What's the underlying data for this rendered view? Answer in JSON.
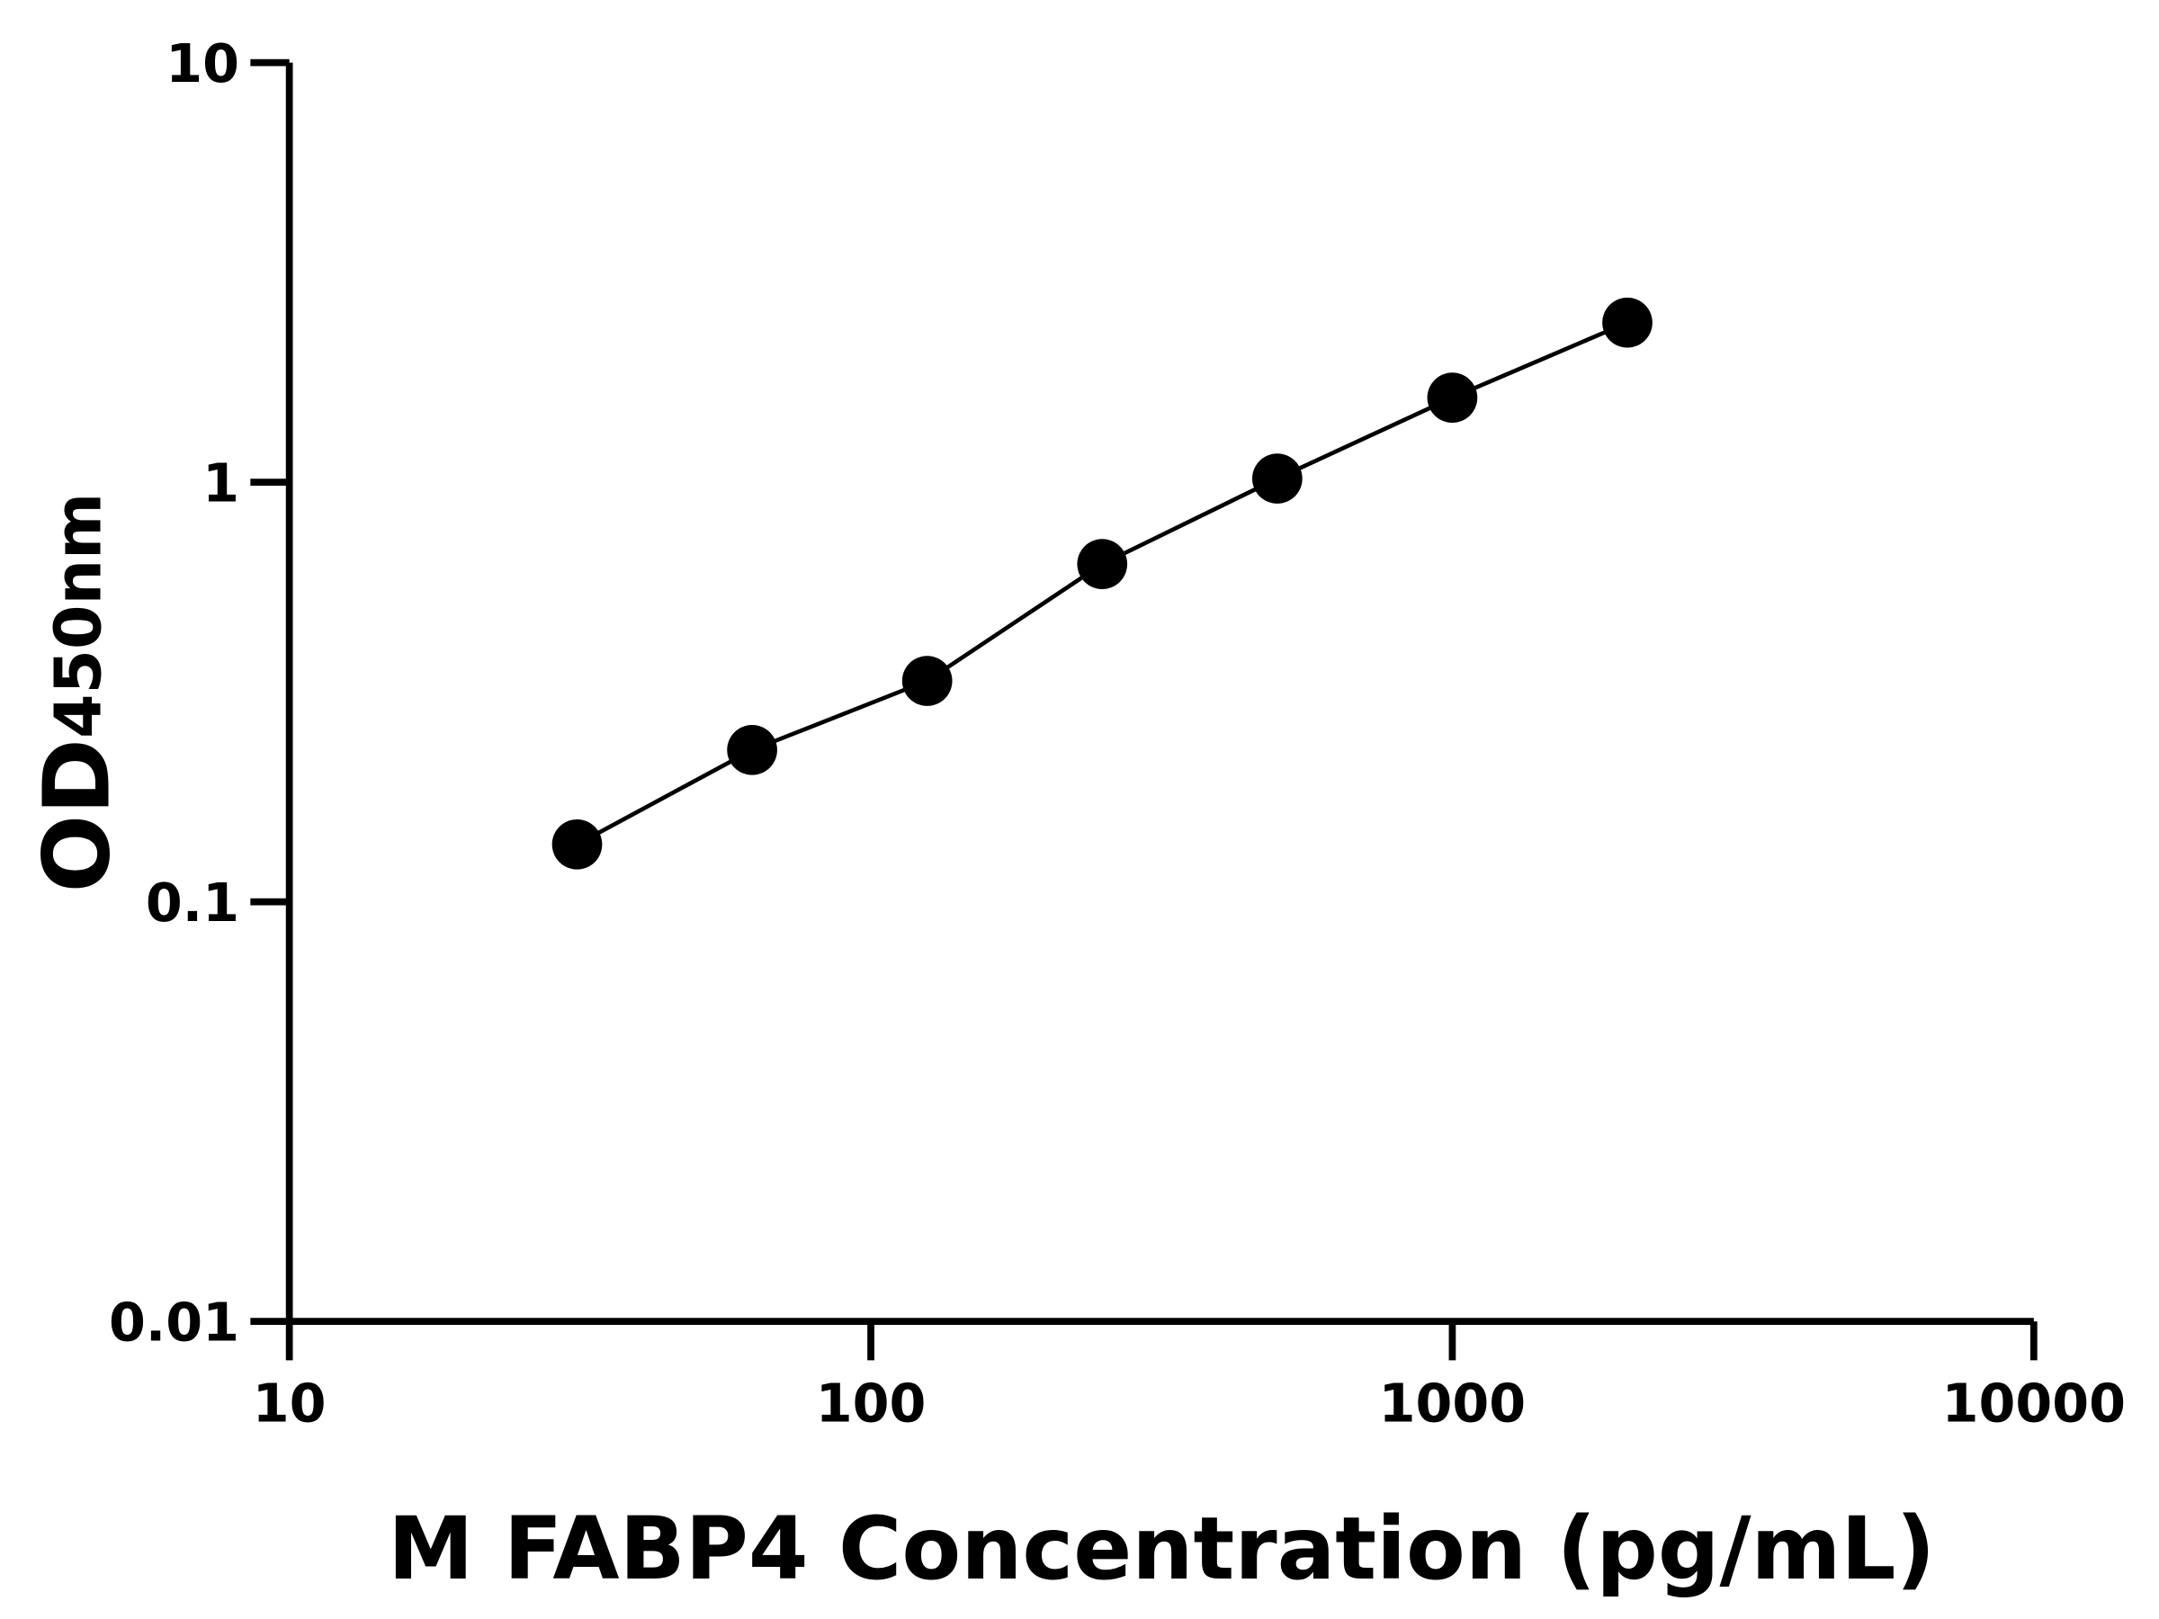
{
  "chart_data": {
    "type": "scatter",
    "x_label": "M FABP4 Concentration (pg/mL)",
    "y_label": "OD",
    "y_label_sub": "450nm",
    "x": [
      31.25,
      62.5,
      125,
      250,
      500,
      1000,
      2000
    ],
    "series": [
      {
        "color": "#000000",
        "values": [
          0.137,
          0.23,
          0.336,
          0.638,
          1.02,
          1.59,
          2.4
        ]
      }
    ],
    "x_log": true,
    "y_log": true,
    "xlim": [
      10,
      10000
    ],
    "xticks": [
      10,
      100,
      1000,
      10000
    ],
    "ylim": [
      0.01,
      10
    ],
    "yticks": [
      0.01,
      0.1,
      1,
      10
    ],
    "connect_line": true
  }
}
